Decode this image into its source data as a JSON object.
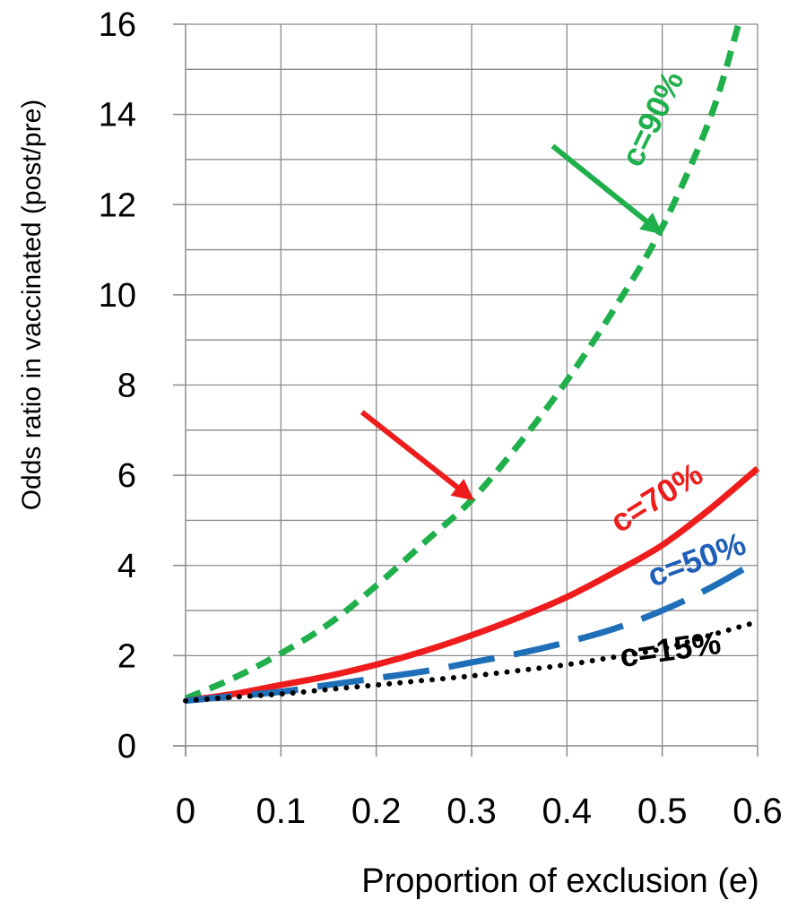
{
  "chart_data": {
    "type": "line",
    "title": "",
    "xlabel": "Proportion of exclusion (e)",
    "ylabel": "Odds ratio in vaccinated (post/pre)",
    "xlim": [
      0,
      0.6
    ],
    "ylim": [
      0,
      16
    ],
    "x_ticks": [
      0,
      0.1,
      0.2,
      0.3,
      0.4,
      0.5,
      0.6
    ],
    "x_tick_labels": [
      "0",
      "0.1",
      "0.2",
      "0.3",
      "0.4",
      "0.5",
      "0.6"
    ],
    "y_ticks": [
      0,
      2,
      4,
      6,
      8,
      10,
      12,
      14,
      16
    ],
    "y_tick_labels": [
      "0",
      "2",
      "4",
      "6",
      "8",
      "10",
      "12",
      "14",
      "16"
    ],
    "grid": true,
    "series": [
      {
        "name": "c=90%",
        "color": "#1fb04c",
        "style": "dashed",
        "x": [
          0,
          0.05,
          0.1,
          0.15,
          0.2,
          0.25,
          0.3,
          0.35,
          0.4,
          0.45,
          0.5,
          0.55,
          0.58
        ],
        "y": [
          1.05,
          1.5,
          2.05,
          2.7,
          3.55,
          4.5,
          5.45,
          6.7,
          8.1,
          9.7,
          11.5,
          13.9,
          16
        ]
      },
      {
        "name": "c=70%",
        "color": "#ee1c1c",
        "style": "solid",
        "x": [
          0,
          0.05,
          0.1,
          0.15,
          0.2,
          0.25,
          0.3,
          0.35,
          0.4,
          0.45,
          0.5,
          0.55,
          0.6
        ],
        "y": [
          1.0,
          1.15,
          1.35,
          1.55,
          1.8,
          2.1,
          2.45,
          2.85,
          3.3,
          3.85,
          4.45,
          5.25,
          6.15
        ]
      },
      {
        "name": "c=50%",
        "color": "#1f6fb8",
        "style": "long-dash",
        "x": [
          0,
          0.05,
          0.1,
          0.15,
          0.2,
          0.25,
          0.3,
          0.35,
          0.4,
          0.45,
          0.5,
          0.55,
          0.6
        ],
        "y": [
          1.0,
          1.1,
          1.2,
          1.35,
          1.5,
          1.65,
          1.85,
          2.05,
          2.3,
          2.6,
          3.0,
          3.5,
          4.1
        ]
      },
      {
        "name": "c=15%",
        "color": "#000000",
        "style": "dotted",
        "x": [
          0,
          0.05,
          0.1,
          0.15,
          0.2,
          0.25,
          0.3,
          0.35,
          0.4,
          0.45,
          0.5,
          0.55,
          0.6
        ],
        "y": [
          1.0,
          1.08,
          1.15,
          1.25,
          1.35,
          1.45,
          1.55,
          1.67,
          1.8,
          1.97,
          2.15,
          2.45,
          2.75
        ]
      }
    ],
    "annotations": [
      {
        "text": "c=90%",
        "color": "#1fb04c",
        "x": 0.5,
        "y": 13.8,
        "rotation": -64
      },
      {
        "text": "c=70%",
        "color": "#ee1c1c",
        "x": 0.5,
        "y": 5.3,
        "rotation": -32
      },
      {
        "text": "c=50%",
        "color": "#1f5fb8",
        "x": 0.54,
        "y": 3.9,
        "rotation": -20
      },
      {
        "text": "c=15%",
        "color": "#000000",
        "x": 0.51,
        "y": 1.9,
        "rotation": -8
      }
    ],
    "arrows": [
      {
        "color": "#1fb04c",
        "from": [
          0.385,
          13.3
        ],
        "to": [
          0.497,
          11.4
        ]
      },
      {
        "color": "#ee1c1c",
        "from": [
          0.185,
          7.4
        ],
        "to": [
          0.299,
          5.5
        ]
      }
    ]
  }
}
